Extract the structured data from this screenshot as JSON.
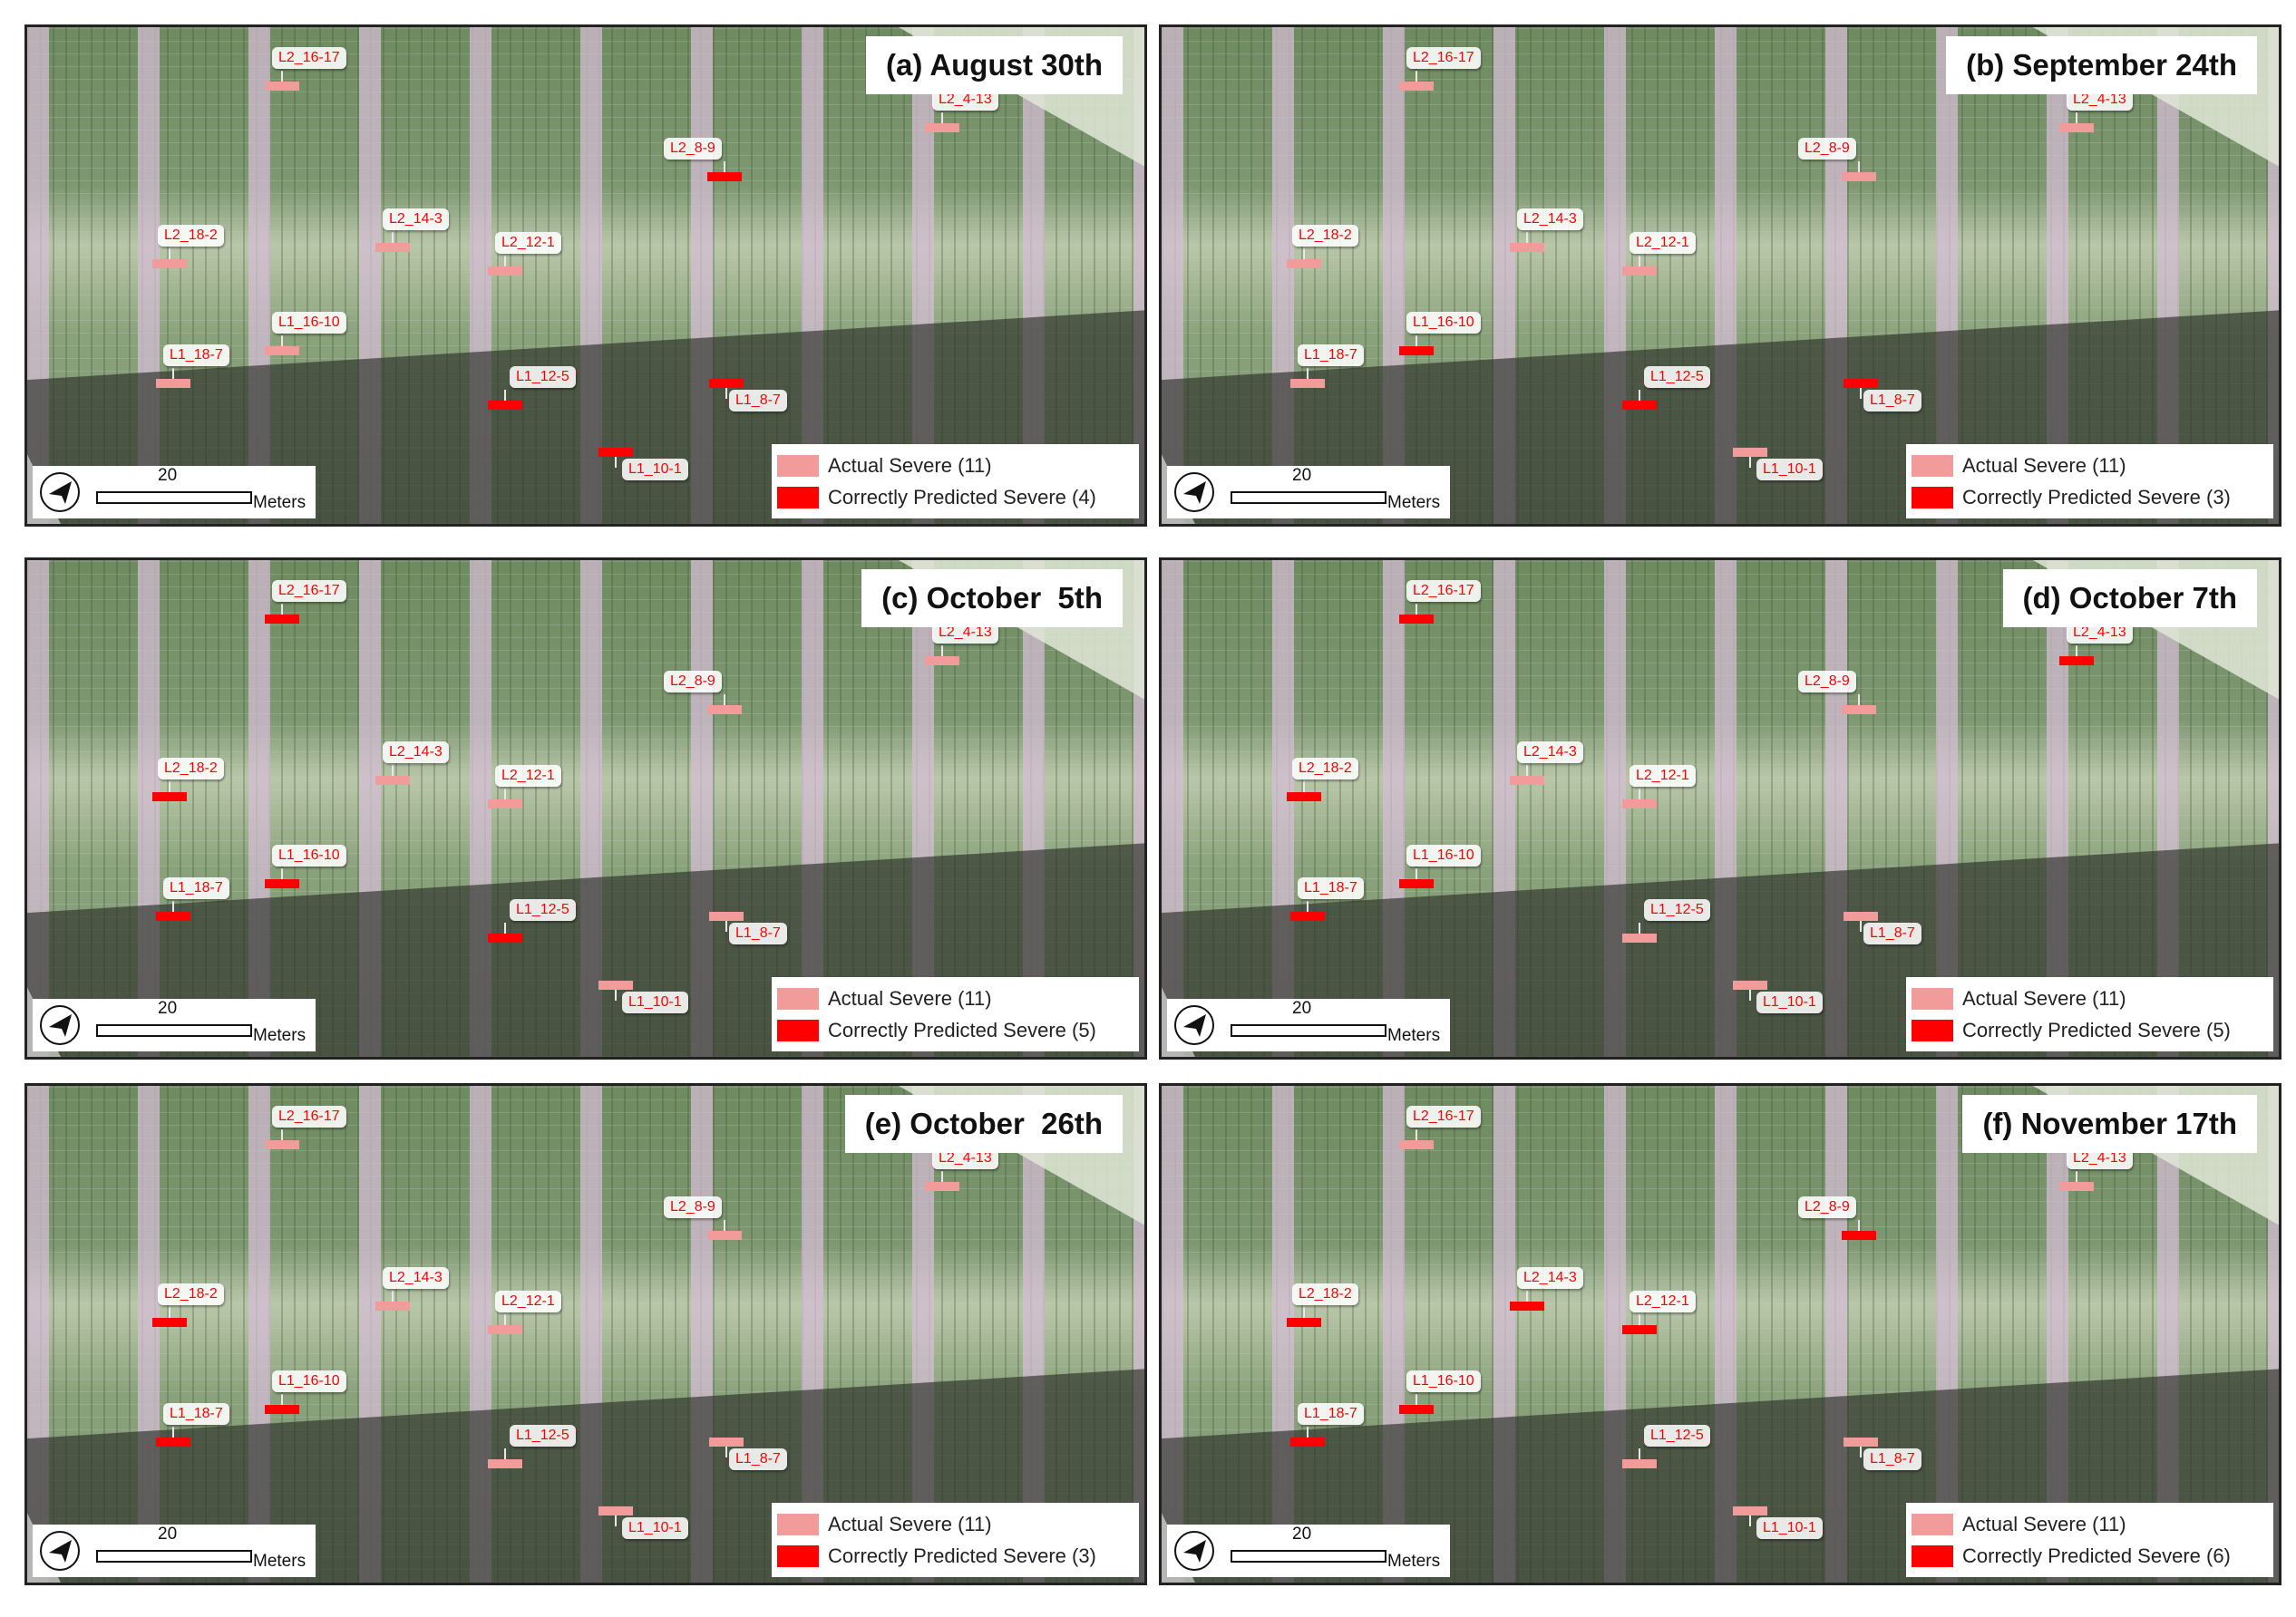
{
  "scale_bar": {
    "value": "20",
    "unit": "Meters"
  },
  "legend": {
    "actual_label": "Actual Severe (11)",
    "actual_color": "#f29b9b",
    "predicted_color": "#ff0000"
  },
  "panels": [
    {
      "title": "(a) August 30th",
      "predicted_label": "Correctly Predicted Severe (4)"
    },
    {
      "title": "(b) September 24th",
      "predicted_label": "Correctly Predicted Severe (3)"
    },
    {
      "title": "(c) October  5th",
      "predicted_label": "Correctly Predicted Severe (5)"
    },
    {
      "title": "(d) October 7th",
      "predicted_label": "Correctly Predicted Severe (5)"
    },
    {
      "title": "(e) October  26th",
      "predicted_label": "Correctly Predicted Severe (3)"
    },
    {
      "title": "(f) November 17th",
      "predicted_label": "Correctly Predicted Severe (6)"
    }
  ],
  "plot_labels": [
    "L2_16-17",
    "L2_4-13",
    "L2_8-9",
    "L2_18-2",
    "L2_14-3",
    "L2_12-1",
    "L1_16-10",
    "L1_18-7",
    "L1_12-5",
    "L1_8-7",
    "L1_10-1"
  ],
  "predicted_by_panel": [
    [
      "L2_8-9",
      "L1_12-5",
      "L1_8-7",
      "L1_10-1"
    ],
    [
      "L1_16-10",
      "L1_12-5",
      "L1_8-7"
    ],
    [
      "L2_16-17",
      "L2_18-2",
      "L1_16-10",
      "L1_18-7",
      "L1_12-5"
    ],
    [
      "L2_16-17",
      "L2_4-13",
      "L2_18-2",
      "L1_16-10",
      "L1_18-7"
    ],
    [
      "L2_18-2",
      "L1_16-10",
      "L1_18-7"
    ],
    [
      "L2_8-9",
      "L2_14-3",
      "L2_12-1",
      "L2_18-2",
      "L1_16-10",
      "L1_18-7"
    ]
  ],
  "north_arrow_icon": "north-arrow-icon"
}
